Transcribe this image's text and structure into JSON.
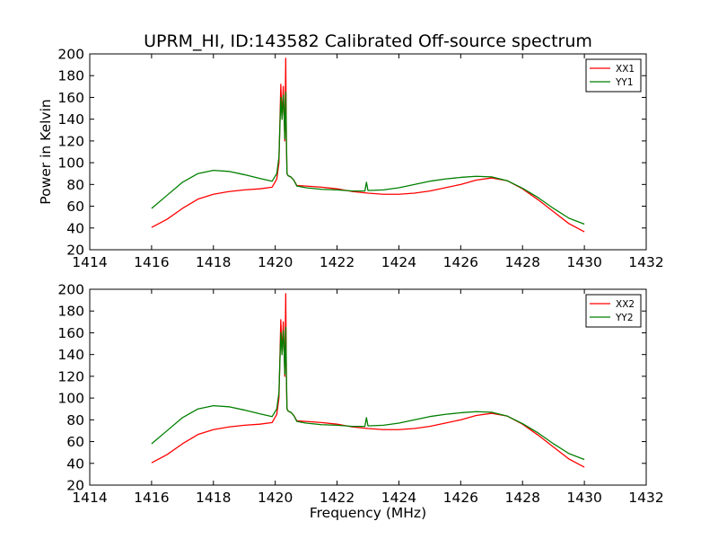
{
  "chart_data": [
    {
      "type": "line",
      "title": "UPRM_HI, ID:143582 Calibrated Off-source spectrum",
      "xlabel": "",
      "ylabel": "Power in Kelvin",
      "xlim": [
        1414,
        1432
      ],
      "ylim": [
        20,
        200
      ],
      "xticks": [
        "1414",
        "1416",
        "1418",
        "1420",
        "1422",
        "1424",
        "1426",
        "1428",
        "1430",
        "1432"
      ],
      "yticks": [
        "20",
        "40",
        "60",
        "80",
        "100",
        "120",
        "140",
        "160",
        "180",
        "200"
      ],
      "legend_position": "top-right",
      "series": [
        {
          "name": "XX1",
          "color": "#ff0000",
          "x": [
            1416.0,
            1416.5,
            1417.0,
            1417.5,
            1418.0,
            1418.5,
            1419.0,
            1419.5,
            1419.9,
            1420.05,
            1420.12,
            1420.18,
            1420.22,
            1420.26,
            1420.28,
            1420.31,
            1420.34,
            1420.36,
            1420.38,
            1420.42,
            1420.5,
            1420.6,
            1420.7,
            1421.0,
            1421.5,
            1422.0,
            1422.5,
            1423.0,
            1423.5,
            1424.0,
            1424.5,
            1425.0,
            1425.5,
            1426.0,
            1426.5,
            1427.0,
            1427.5,
            1428.0,
            1428.5,
            1429.0,
            1429.5,
            1430.0
          ],
          "y": [
            40.5,
            48.0,
            58.0,
            66.5,
            71.0,
            73.5,
            75.0,
            76.0,
            77.5,
            85.0,
            100.0,
            172.0,
            140.0,
            170.0,
            150.0,
            120.0,
            196.0,
            120.0,
            90.0,
            88.0,
            87.0,
            84.0,
            79.0,
            78.5,
            77.5,
            76.0,
            73.5,
            72.0,
            71.0,
            71.0,
            72.0,
            74.0,
            77.0,
            80.0,
            84.0,
            86.0,
            83.5,
            76.0,
            66.0,
            55.0,
            44.0,
            36.5
          ]
        },
        {
          "name": "YY1",
          "color": "#007f00",
          "x": [
            1416.0,
            1416.5,
            1417.0,
            1417.5,
            1418.0,
            1418.5,
            1419.0,
            1419.5,
            1419.9,
            1420.05,
            1420.12,
            1420.18,
            1420.22,
            1420.26,
            1420.28,
            1420.31,
            1420.34,
            1420.36,
            1420.38,
            1420.42,
            1420.5,
            1420.6,
            1420.7,
            1421.0,
            1421.5,
            1422.0,
            1422.5,
            1422.9,
            1422.95,
            1423.0,
            1423.05,
            1423.5,
            1424.0,
            1424.5,
            1425.0,
            1425.5,
            1426.0,
            1426.5,
            1427.0,
            1427.5,
            1428.0,
            1428.5,
            1429.0,
            1429.5,
            1430.0
          ],
          "y": [
            58.0,
            70.0,
            82.0,
            90.0,
            93.0,
            92.0,
            89.0,
            85.5,
            83.0,
            90.0,
            105.0,
            160.0,
            140.0,
            162.0,
            150.0,
            122.0,
            165.0,
            125.0,
            90.0,
            88.0,
            87.0,
            84.0,
            78.5,
            77.0,
            75.5,
            75.0,
            74.0,
            74.0,
            82.0,
            74.5,
            74.5,
            75.0,
            77.0,
            80.0,
            83.0,
            85.0,
            86.5,
            87.5,
            87.0,
            83.5,
            76.5,
            68.0,
            58.0,
            49.0,
            43.5
          ]
        }
      ]
    },
    {
      "type": "line",
      "title": "",
      "xlabel": "Frequency (MHz)",
      "ylabel": "",
      "xlim": [
        1414,
        1432
      ],
      "ylim": [
        20,
        200
      ],
      "xticks": [
        "1414",
        "1416",
        "1418",
        "1420",
        "1422",
        "1424",
        "1426",
        "1428",
        "1430",
        "1432"
      ],
      "yticks": [
        "20",
        "40",
        "60",
        "80",
        "100",
        "120",
        "140",
        "160",
        "180",
        "200"
      ],
      "legend_position": "top-right",
      "series": [
        {
          "name": "XX2",
          "color": "#ff0000",
          "x": [
            1416.0,
            1416.5,
            1417.0,
            1417.5,
            1418.0,
            1418.5,
            1419.0,
            1419.5,
            1419.9,
            1420.05,
            1420.12,
            1420.18,
            1420.22,
            1420.26,
            1420.28,
            1420.31,
            1420.34,
            1420.36,
            1420.38,
            1420.42,
            1420.5,
            1420.6,
            1420.7,
            1421.0,
            1421.5,
            1422.0,
            1422.5,
            1423.0,
            1423.5,
            1424.0,
            1424.5,
            1425.0,
            1425.5,
            1426.0,
            1426.5,
            1427.0,
            1427.5,
            1428.0,
            1428.5,
            1429.0,
            1429.5,
            1430.0
          ],
          "y": [
            40.5,
            48.0,
            58.0,
            66.5,
            71.0,
            73.5,
            75.0,
            76.0,
            77.5,
            85.0,
            100.0,
            172.0,
            140.0,
            170.0,
            150.0,
            120.0,
            196.0,
            120.0,
            90.0,
            88.0,
            87.0,
            84.0,
            79.0,
            78.5,
            77.5,
            76.0,
            73.5,
            72.0,
            71.0,
            71.0,
            72.0,
            74.0,
            77.0,
            80.0,
            84.0,
            86.0,
            83.5,
            76.0,
            66.0,
            55.0,
            44.0,
            36.5
          ]
        },
        {
          "name": "YY2",
          "color": "#007f00",
          "x": [
            1416.0,
            1416.5,
            1417.0,
            1417.5,
            1418.0,
            1418.5,
            1419.0,
            1419.5,
            1419.9,
            1420.05,
            1420.12,
            1420.18,
            1420.22,
            1420.26,
            1420.28,
            1420.31,
            1420.34,
            1420.36,
            1420.38,
            1420.42,
            1420.5,
            1420.6,
            1420.7,
            1421.0,
            1421.5,
            1422.0,
            1422.5,
            1422.9,
            1422.95,
            1423.0,
            1423.05,
            1423.5,
            1424.0,
            1424.5,
            1425.0,
            1425.5,
            1426.0,
            1426.5,
            1427.0,
            1427.5,
            1428.0,
            1428.5,
            1429.0,
            1429.5,
            1430.0
          ],
          "y": [
            58.0,
            70.0,
            82.0,
            90.0,
            93.0,
            92.0,
            89.0,
            85.5,
            83.0,
            90.0,
            105.0,
            160.0,
            140.0,
            162.0,
            150.0,
            122.0,
            165.0,
            125.0,
            90.0,
            88.0,
            87.0,
            84.0,
            78.5,
            77.0,
            75.5,
            75.0,
            74.0,
            74.0,
            82.0,
            74.5,
            74.5,
            75.0,
            77.0,
            80.0,
            83.0,
            85.0,
            86.5,
            87.5,
            87.0,
            83.5,
            76.5,
            68.0,
            58.0,
            49.0,
            43.5
          ]
        }
      ]
    }
  ]
}
